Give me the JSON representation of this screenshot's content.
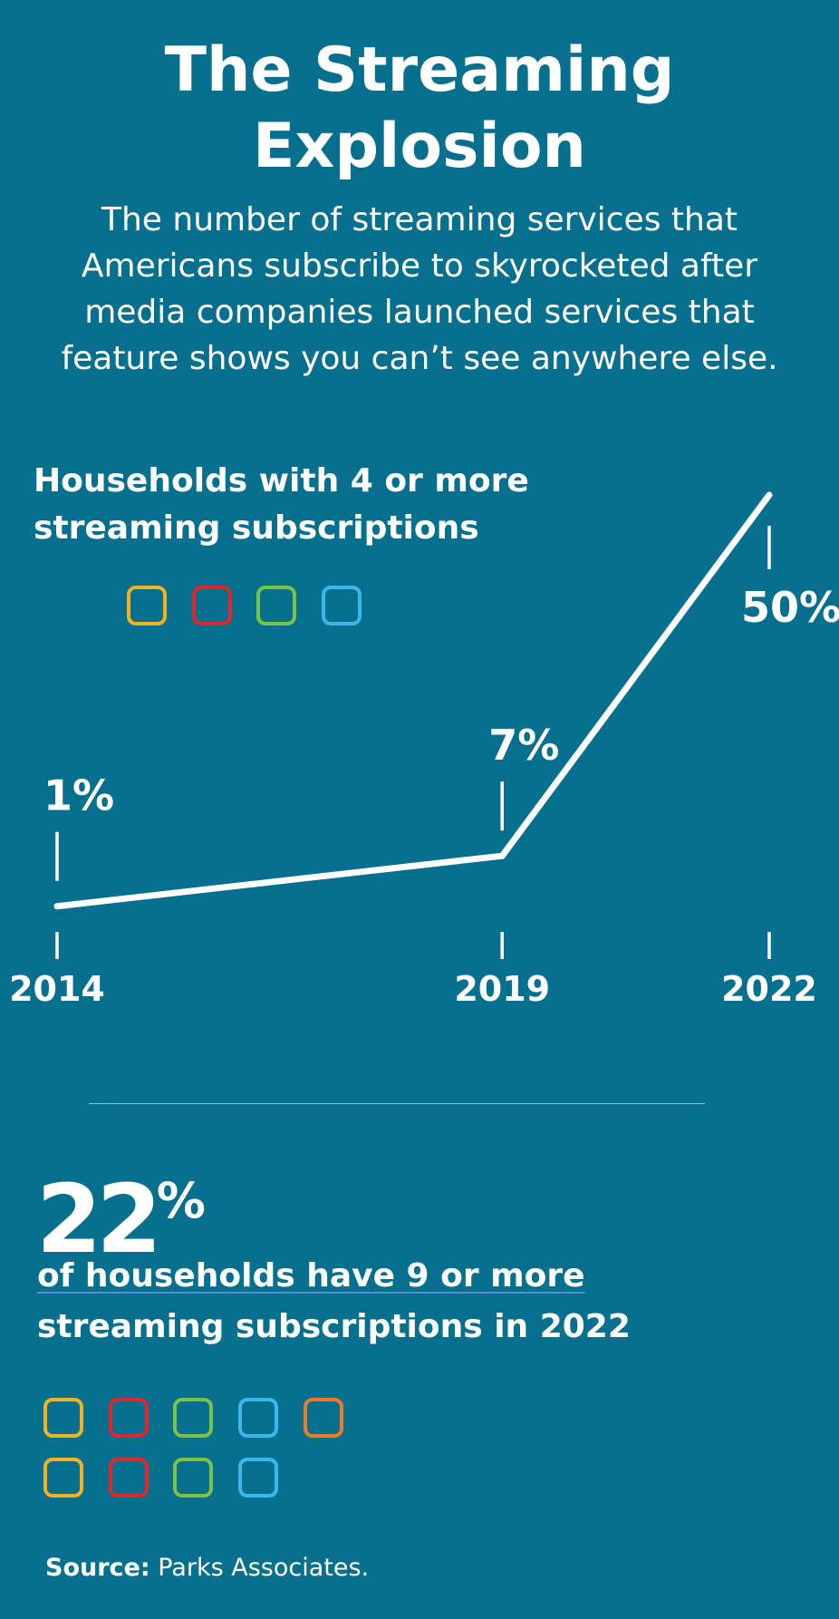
{
  "title": [
    "The Streaming",
    "Explosion"
  ],
  "subtitle": [
    "The number of streaming services that",
    "Americans subscribe to skyrocketed after",
    "media companies launched services that",
    "feature shows you can’t see anywhere else."
  ],
  "chart_data": {
    "type": "line",
    "title": "Households with 4 or more streaming subscriptions",
    "title_lines": [
      "Households with 4 or more",
      "streaming subscriptions"
    ],
    "x": [
      "2014",
      "2019",
      "2022"
    ],
    "values": [
      1,
      7,
      50
    ],
    "data_labels": [
      "1%",
      "7%",
      "50%"
    ],
    "unit": "%",
    "ylim": [
      0,
      50
    ],
    "grid": false,
    "legend": "none",
    "line_color": "#ffffff"
  },
  "icon_colors_small": [
    "#f0b323",
    "#e0262a",
    "#7cc243",
    "#3bb7ea"
  ],
  "stat": {
    "value": "22",
    "unit": "%",
    "text_lines": [
      "of households have 9 or more",
      "streaming subscriptions in 2022"
    ],
    "icon_colors_row1": [
      "#f0b323",
      "#e0262a",
      "#7cc243",
      "#3bb7ea",
      "#ee7a24"
    ],
    "icon_colors_row2": [
      "#f0b323",
      "#e0262a",
      "#7cc243",
      "#3bb7ea"
    ]
  },
  "source": {
    "label": "Source:",
    "text": " Parks Associates."
  },
  "background_color": "#06708e"
}
